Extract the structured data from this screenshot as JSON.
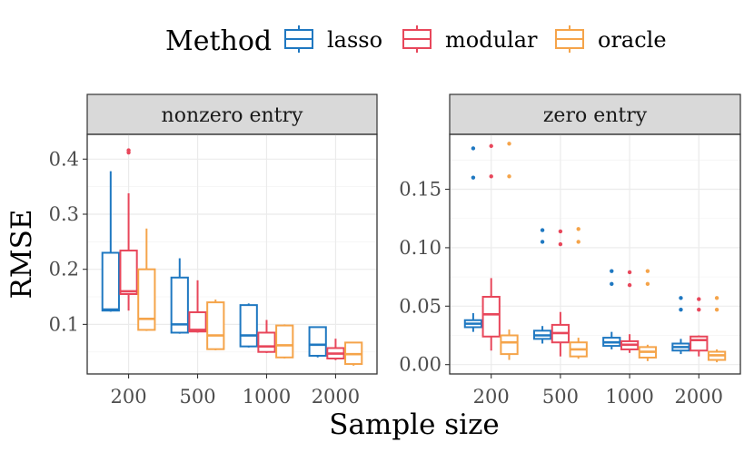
{
  "chart_data": {
    "type": "boxplot",
    "title": "",
    "xlabel": "Sample size",
    "ylabel": "RMSE",
    "legend": {
      "title": "Method",
      "position": "top",
      "entries": [
        {
          "name": "lasso",
          "color": "#1f78c1"
        },
        {
          "name": "modular",
          "color": "#e8475b"
        },
        {
          "name": "oracle",
          "color": "#f5a44a"
        }
      ]
    },
    "categories": [
      "200",
      "500",
      "1000",
      "2000"
    ],
    "grid": true,
    "panels": [
      {
        "title": "nonzero entry",
        "ylim": [
          0.01,
          0.445
        ],
        "yticks": [
          0.1,
          0.2,
          0.3,
          0.4
        ],
        "ytick_labels": [
          "0.1",
          "0.2",
          "0.3",
          "0.4"
        ],
        "series": [
          {
            "name": "lasso",
            "boxes": [
              {
                "min": 0.123,
                "q1": 0.125,
                "median": 0.127,
                "q3": 0.23,
                "max": 0.378,
                "outliers": []
              },
              {
                "min": 0.083,
                "q1": 0.085,
                "median": 0.1,
                "q3": 0.185,
                "max": 0.22,
                "outliers": []
              },
              {
                "min": 0.058,
                "q1": 0.06,
                "median": 0.08,
                "q3": 0.135,
                "max": 0.138,
                "outliers": []
              },
              {
                "min": 0.04,
                "q1": 0.043,
                "median": 0.063,
                "q3": 0.095,
                "max": 0.096,
                "outliers": []
              }
            ]
          },
          {
            "name": "modular",
            "boxes": [
              {
                "min": 0.125,
                "q1": 0.155,
                "median": 0.16,
                "q3": 0.234,
                "max": 0.338,
                "outliers": [
                  0.412,
                  0.416
                ]
              },
              {
                "min": 0.085,
                "q1": 0.087,
                "median": 0.09,
                "q3": 0.122,
                "max": 0.18,
                "outliers": []
              },
              {
                "min": 0.048,
                "q1": 0.05,
                "median": 0.06,
                "q3": 0.085,
                "max": 0.108,
                "outliers": []
              },
              {
                "min": 0.035,
                "q1": 0.038,
                "median": 0.047,
                "q3": 0.057,
                "max": 0.074,
                "outliers": []
              }
            ]
          },
          {
            "name": "oracle",
            "boxes": [
              {
                "min": 0.088,
                "q1": 0.09,
                "median": 0.11,
                "q3": 0.2,
                "max": 0.274,
                "outliers": []
              },
              {
                "min": 0.053,
                "q1": 0.055,
                "median": 0.08,
                "q3": 0.14,
                "max": 0.145,
                "outliers": []
              },
              {
                "min": 0.038,
                "q1": 0.04,
                "median": 0.062,
                "q3": 0.098,
                "max": 0.1,
                "outliers": []
              },
              {
                "min": 0.025,
                "q1": 0.028,
                "median": 0.046,
                "q3": 0.067,
                "max": 0.068,
                "outliers": []
              }
            ]
          }
        ]
      },
      {
        "title": "zero entry",
        "ylim": [
          -0.008,
          0.197
        ],
        "yticks": [
          0.0,
          0.05,
          0.1,
          0.15
        ],
        "ytick_labels": [
          "0.00",
          "0.05",
          "0.10",
          "0.15"
        ],
        "series": [
          {
            "name": "lasso",
            "boxes": [
              {
                "min": 0.028,
                "q1": 0.032,
                "median": 0.035,
                "q3": 0.038,
                "max": 0.044,
                "outliers": [
                  0.16,
                  0.185
                ]
              },
              {
                "min": 0.018,
                "q1": 0.022,
                "median": 0.025,
                "q3": 0.029,
                "max": 0.033,
                "outliers": [
                  0.105,
                  0.115
                ]
              },
              {
                "min": 0.013,
                "q1": 0.016,
                "median": 0.019,
                "q3": 0.023,
                "max": 0.028,
                "outliers": [
                  0.069,
                  0.08
                ]
              },
              {
                "min": 0.009,
                "q1": 0.012,
                "median": 0.015,
                "q3": 0.018,
                "max": 0.022,
                "outliers": [
                  0.047,
                  0.057
                ]
              }
            ]
          },
          {
            "name": "modular",
            "boxes": [
              {
                "min": 0.012,
                "q1": 0.024,
                "median": 0.043,
                "q3": 0.058,
                "max": 0.074,
                "outliers": [
                  0.161,
                  0.187
                ]
              },
              {
                "min": 0.007,
                "q1": 0.019,
                "median": 0.027,
                "q3": 0.034,
                "max": 0.045,
                "outliers": [
                  0.103,
                  0.114
                ]
              },
              {
                "min": 0.01,
                "q1": 0.013,
                "median": 0.017,
                "q3": 0.02,
                "max": 0.026,
                "outliers": [
                  0.068,
                  0.079
                ]
              },
              {
                "min": 0.007,
                "q1": 0.012,
                "median": 0.021,
                "q3": 0.024,
                "max": 0.025,
                "outliers": [
                  0.047,
                  0.056
                ]
              }
            ]
          },
          {
            "name": "oracle",
            "boxes": [
              {
                "min": 0.004,
                "q1": 0.009,
                "median": 0.019,
                "q3": 0.025,
                "max": 0.03,
                "outliers": [
                  0.161,
                  0.189
                ]
              },
              {
                "min": 0.005,
                "q1": 0.007,
                "median": 0.013,
                "q3": 0.019,
                "max": 0.023,
                "outliers": [
                  0.105,
                  0.116
                ]
              },
              {
                "min": 0.003,
                "q1": 0.006,
                "median": 0.011,
                "q3": 0.015,
                "max": 0.017,
                "outliers": [
                  0.069,
                  0.08
                ]
              },
              {
                "min": 0.002,
                "q1": 0.004,
                "median": 0.008,
                "q3": 0.011,
                "max": 0.013,
                "outliers": [
                  0.047,
                  0.057
                ]
              }
            ]
          }
        ]
      }
    ]
  }
}
